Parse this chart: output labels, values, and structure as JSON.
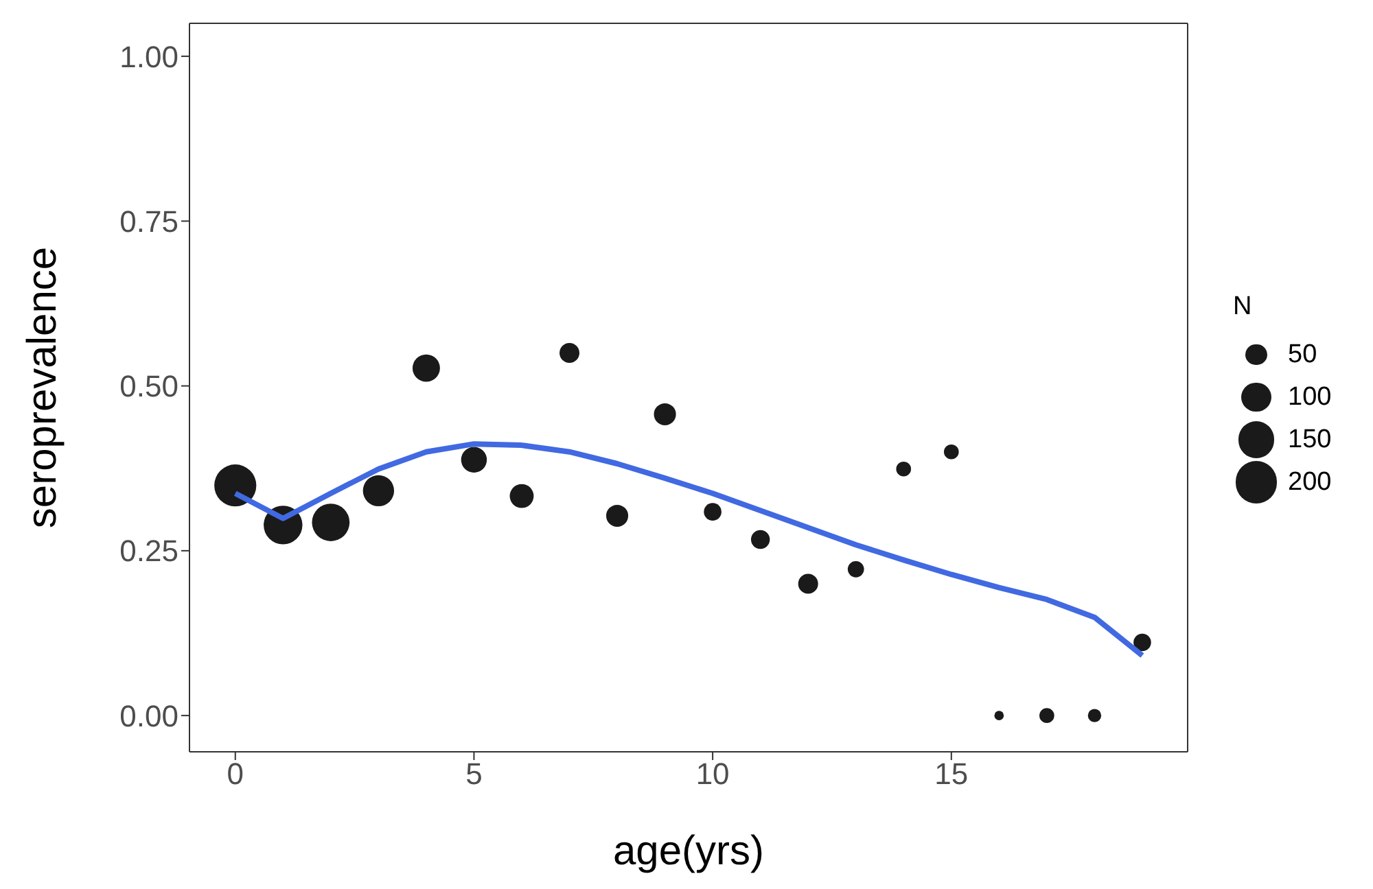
{
  "chart_data": {
    "type": "bubble",
    "xlabel": "age(yrs)",
    "ylabel": "seroprevalence",
    "legend_title": "N",
    "grid": false,
    "x": [
      0,
      1,
      2,
      3,
      4,
      5,
      6,
      7,
      8,
      9,
      10,
      11,
      12,
      13,
      14,
      15,
      16,
      17,
      18,
      19
    ],
    "xlim": [
      -0.96,
      19.95
    ],
    "xticks": [
      0,
      5,
      10,
      15
    ],
    "ylim": [
      -0.055,
      1.05
    ],
    "yticks": [
      {
        "value": 0,
        "label": "0.00"
      },
      {
        "value": 0.25,
        "label": "0.25"
      },
      {
        "value": 0.5,
        "label": "0.50"
      },
      {
        "value": 0.75,
        "label": "0.75"
      },
      {
        "value": 1,
        "label": "1.00"
      }
    ],
    "size_legend": [
      50,
      100,
      150,
      200
    ],
    "series": [
      {
        "color": "#1a1a1a",
        "values": [
          0.349,
          0.289,
          0.293,
          0.341,
          0.527,
          0.388,
          0.333,
          0.55,
          0.303,
          0.457,
          0.309,
          0.267,
          0.2,
          0.222,
          0.374,
          0.4,
          0,
          0,
          0,
          0.111
        ],
        "sizes": [
          200,
          170,
          160,
          110,
          85,
          75,
          65,
          45,
          55,
          55,
          35,
          40,
          45,
          30,
          25,
          25,
          10,
          25,
          20,
          35
        ]
      },
      {
        "type": "line",
        "color": "#4169e1",
        "values": [
          0.337,
          0.299,
          0.337,
          0.374,
          0.4,
          0.412,
          0.41,
          0.4,
          0.382,
          0.36,
          0.337,
          0.311,
          0.285,
          0.259,
          0.236,
          0.214,
          0.194,
          0.176,
          0.149,
          0.091
        ]
      }
    ]
  }
}
